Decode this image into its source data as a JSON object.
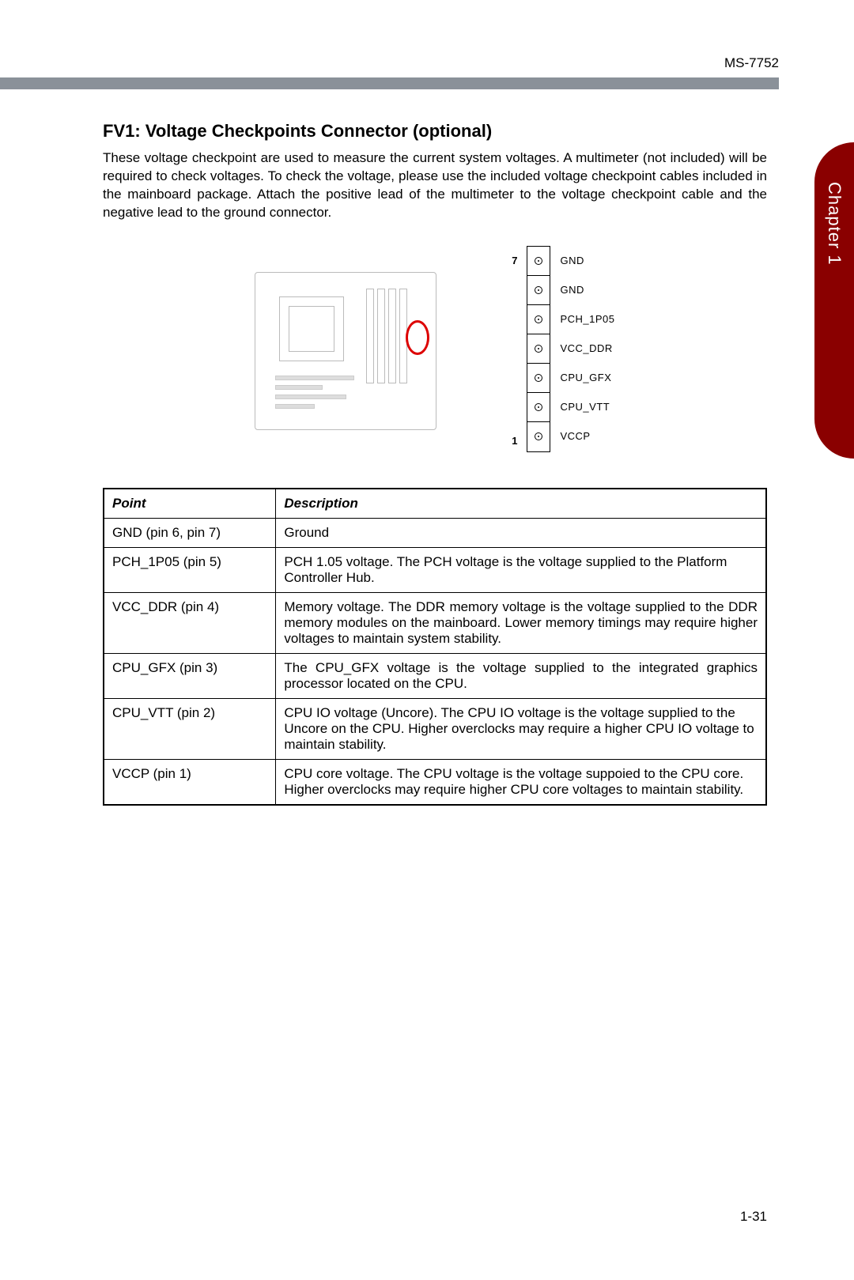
{
  "header": {
    "model": "MS-7752",
    "chapter_tab": "Chapter 1"
  },
  "section": {
    "title": "FV1: Voltage Checkpoints Connector (optional)",
    "intro": "These voltage checkpoint are used to measure the current system voltages. A multimeter (not included) will be required to check voltages. To check the voltage, please use the included voltage checkpoint cables included in the mainboard package. Attach the positive lead of the multimeter to the voltage checkpoint cable and the negative lead to the ground connector."
  },
  "pinout": {
    "top_num": "7",
    "bottom_num": "1",
    "labels": [
      "GND",
      "GND",
      "PCH_1P05",
      "VCC_DDR",
      "CPU_GFX",
      "CPU_VTT",
      "VCCP"
    ]
  },
  "table": {
    "headers": {
      "point": "Point",
      "desc": "Description"
    },
    "rows": [
      {
        "point": "GND (pin 6, pin 7)",
        "desc": "Ground",
        "justify": false
      },
      {
        "point": "PCH_1P05 (pin 5)",
        "desc": "PCH 1.05 voltage. The PCH voltage is the voltage supplied to the Platform Controller Hub.",
        "justify": false
      },
      {
        "point": "VCC_DDR (pin 4)",
        "desc": "Memory voltage. The DDR memory voltage is the voltage supplied to the DDR memory modules on the mainboard. Lower memory timings may require higher voltages to maintain system stability.",
        "justify": true
      },
      {
        "point": "CPU_GFX (pin 3)",
        "desc": "The CPU_GFX voltage is the voltage supplied to the integrated graphics processor located on the CPU.",
        "justify": true
      },
      {
        "point": "CPU_VTT (pin 2)",
        "desc": "CPU IO voltage (Uncore). The CPU IO voltage is the voltage supplied to the Uncore on the CPU. Higher overclocks may require a higher CPU IO voltage to maintain stability.",
        "justify": false
      },
      {
        "point": "VCCP (pin 1)",
        "desc": "CPU core voltage. The CPU voltage is the voltage suppoied to the CPU core. Higher overclocks may require higher CPU core voltages to maintain stability.",
        "justify": false
      }
    ]
  },
  "footer": {
    "page": "1-31"
  },
  "colors": {
    "accent_rule": "#8a9199",
    "tab_bg": "#8a0000",
    "highlight_ring": "#d00000"
  }
}
